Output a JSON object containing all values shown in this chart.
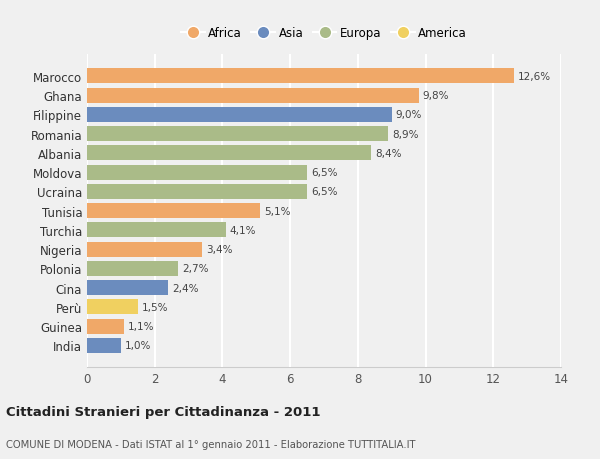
{
  "countries": [
    "India",
    "Guinea",
    "Perù",
    "Cina",
    "Polonia",
    "Nigeria",
    "Turchia",
    "Tunisia",
    "Ucraina",
    "Moldova",
    "Albania",
    "Romania",
    "Filippine",
    "Ghana",
    "Marocco"
  ],
  "values": [
    1.0,
    1.1,
    1.5,
    2.4,
    2.7,
    3.4,
    4.1,
    5.1,
    6.5,
    6.5,
    8.4,
    8.9,
    9.0,
    9.8,
    12.6
  ],
  "continents": [
    "Asia",
    "Africa",
    "America",
    "Asia",
    "Europa",
    "Africa",
    "Europa",
    "Africa",
    "Europa",
    "Europa",
    "Europa",
    "Europa",
    "Asia",
    "Africa",
    "Africa"
  ],
  "colors": {
    "Africa": "#F0A868",
    "Asia": "#6B8CBE",
    "Europa": "#AABB88",
    "America": "#F0D060"
  },
  "legend_order": [
    "Africa",
    "Asia",
    "Europa",
    "America"
  ],
  "title": "Cittadini Stranieri per Cittadinanza - 2011",
  "subtitle": "COMUNE DI MODENA - Dati ISTAT al 1° gennaio 2011 - Elaborazione TUTTITALIA.IT",
  "xlim": [
    0,
    14
  ],
  "xticks": [
    0,
    2,
    4,
    6,
    8,
    10,
    12,
    14
  ],
  "background_color": "#f0f0f0",
  "grid_color": "#ffffff",
  "bar_height": 0.78
}
